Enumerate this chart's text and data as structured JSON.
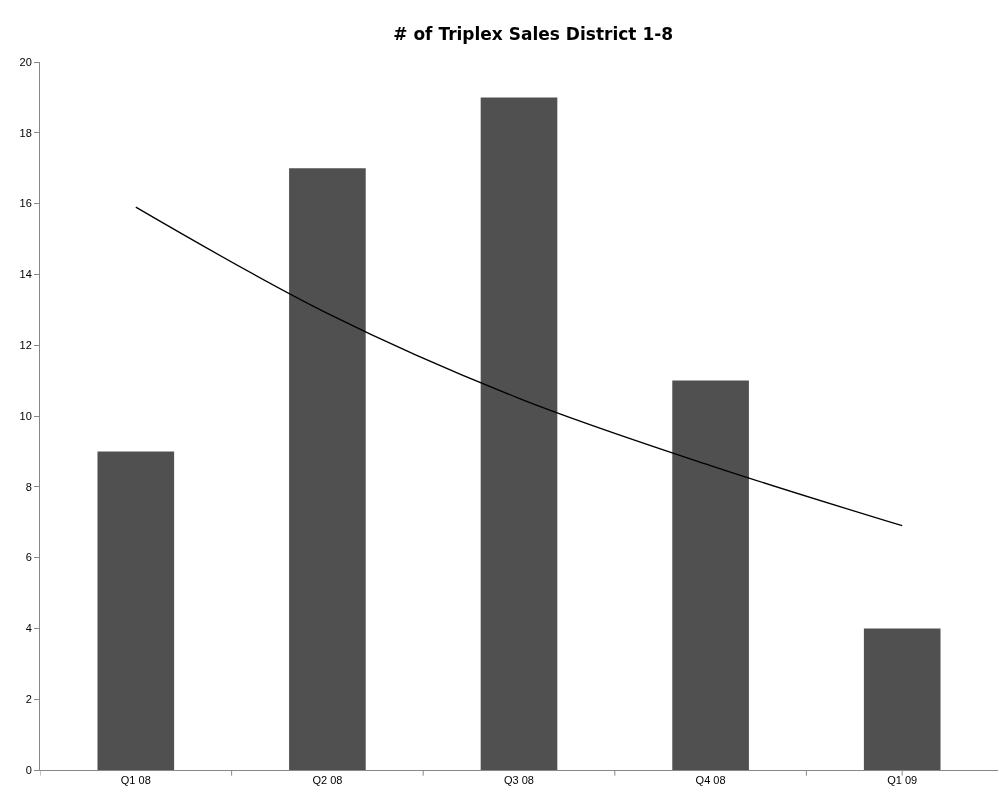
{
  "chart_data": {
    "type": "bar",
    "title": "# of Triplex Sales District 1-8",
    "categories": [
      "Q1 08",
      "Q2 08",
      "Q3 08",
      "Q4 08",
      "Q1 09"
    ],
    "series": [
      {
        "color": "#505050",
        "values": [
          9,
          17,
          19,
          11,
          4
        ]
      },
      {
        "type": "line",
        "color": "#000000",
        "x": [
          "Q1 08",
          "Q2 08",
          "Q3 08",
          "Q4 08",
          "Q1 09"
        ],
        "values": [
          15.9,
          12.9,
          10.5,
          8.6,
          6.9
        ]
      }
    ],
    "ylim": [
      0,
      20
    ],
    "yticks": [
      0,
      2,
      4,
      6,
      8,
      10,
      12,
      14,
      16,
      18,
      20
    ],
    "grid": false,
    "marker": "none",
    "line_style": "solid"
  }
}
